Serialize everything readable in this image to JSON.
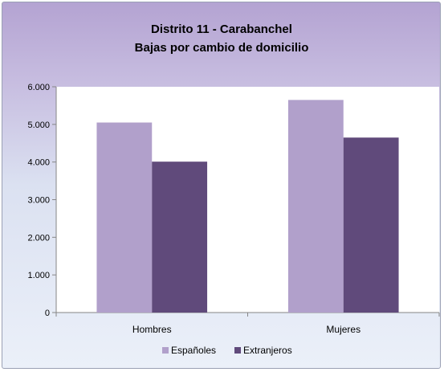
{
  "chart_data": {
    "type": "bar",
    "title": "Distrito 11 - Carabanchel",
    "subtitle": "Bajas por cambio de domicilio",
    "categories": [
      "Hombres",
      "Mujeres"
    ],
    "series": [
      {
        "name": "Españoles",
        "values": [
          5050,
          5650
        ],
        "color": "#b1a0cb"
      },
      {
        "name": "Extranjeros",
        "values": [
          4010,
          4650
        ],
        "color": "#604a7b"
      }
    ],
    "ylim": [
      0,
      6000
    ],
    "yticks": [
      0,
      1000,
      2000,
      3000,
      4000,
      5000,
      6000
    ],
    "ytick_labels": [
      "0",
      "1.000",
      "2.000",
      "3.000",
      "4.000",
      "5.000",
      "6.000"
    ],
    "xlabel": "",
    "ylabel": "",
    "grid": false,
    "legend_position": "bottom"
  }
}
